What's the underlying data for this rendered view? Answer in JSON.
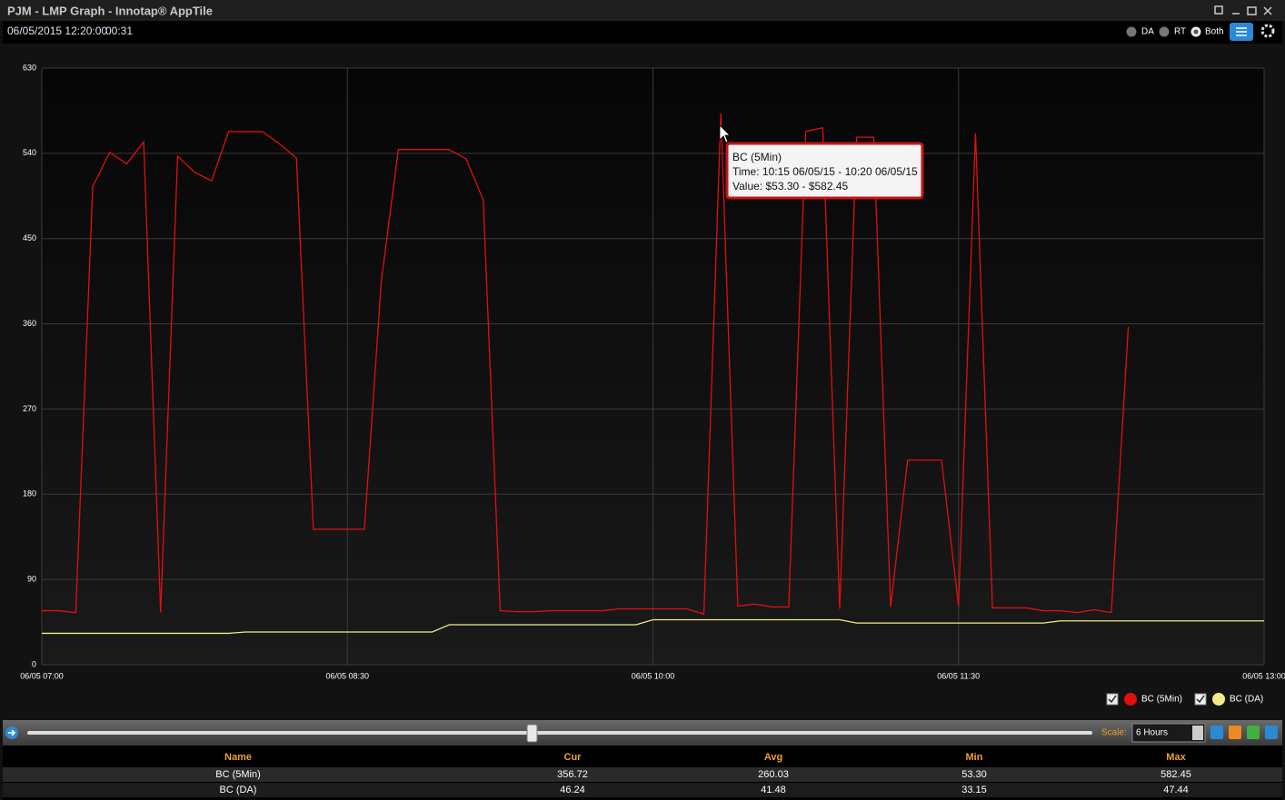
{
  "window": {
    "title": "PJM - LMP Graph - Innotap® AppTile"
  },
  "toolbar": {
    "timestamp": "06/05/2015 12:20:00",
    "elapsed": "00:31",
    "modes": [
      "DA",
      "RT",
      "Both"
    ]
  },
  "chart_data": {
    "type": "line",
    "xlim": [
      "06/05 07:00",
      "06/05 13:00"
    ],
    "xticks": [
      "06/05 07:00",
      "06/05 08:30",
      "06/05 10:00",
      "06/05 11:30",
      "06/05 13:00"
    ],
    "ylim": [
      0,
      630
    ],
    "yticks": [
      0,
      90,
      180,
      270,
      360,
      450,
      540,
      630
    ],
    "grid": true,
    "legend": "bottom-right",
    "series": [
      {
        "name": "BC (5Min)",
        "color": "#e01010",
        "x": [
          "06/05 07:00",
          "06/05 07:05",
          "06/05 07:10",
          "06/05 07:15",
          "06/05 07:20",
          "06/05 07:25",
          "06/05 07:30",
          "06/05 07:35",
          "06/05 07:40",
          "06/05 07:45",
          "06/05 07:50",
          "06/05 07:55",
          "06/05 08:00",
          "06/05 08:05",
          "06/05 08:10",
          "06/05 08:15",
          "06/05 08:20",
          "06/05 08:25",
          "06/05 08:30",
          "06/05 08:35",
          "06/05 08:40",
          "06/05 08:45",
          "06/05 08:50",
          "06/05 08:55",
          "06/05 09:00",
          "06/05 09:05",
          "06/05 09:10",
          "06/05 09:15",
          "06/05 09:20",
          "06/05 09:25",
          "06/05 09:30",
          "06/05 09:35",
          "06/05 09:40",
          "06/05 09:45",
          "06/05 09:50",
          "06/05 09:55",
          "06/05 10:00",
          "06/05 10:05",
          "06/05 10:10",
          "06/05 10:15",
          "06/05 10:20",
          "06/05 10:25",
          "06/05 10:30",
          "06/05 10:35",
          "06/05 10:40",
          "06/05 10:45",
          "06/05 10:50",
          "06/05 10:55",
          "06/05 11:00",
          "06/05 11:05",
          "06/05 11:10",
          "06/05 11:15",
          "06/05 11:20",
          "06/05 11:25",
          "06/05 11:30",
          "06/05 11:35",
          "06/05 11:40",
          "06/05 11:45",
          "06/05 11:50",
          "06/05 11:55",
          "06/05 12:00",
          "06/05 12:05",
          "06/05 12:10",
          "06/05 12:15",
          "06/05 12:20"
        ],
        "values": [
          57,
          57,
          55,
          505,
          541,
          529,
          552,
          55,
          537,
          520,
          511,
          563,
          563,
          563,
          550,
          535,
          143,
          143,
          143,
          143,
          405,
          544,
          544,
          544,
          544,
          534,
          491,
          57,
          56,
          56,
          57,
          57,
          57,
          57,
          59,
          59,
          59,
          59,
          59,
          53.3,
          582.45,
          62,
          64,
          61,
          61,
          563,
          567,
          59,
          557,
          557,
          61,
          216,
          216,
          216,
          62,
          561,
          60,
          60,
          60,
          57,
          57,
          55,
          58,
          55,
          356.72
        ]
      },
      {
        "name": "BC (DA)",
        "color": "#f2ea8a",
        "x": [
          "06/05 07:00",
          "06/05 07:55",
          "06/05 08:00",
          "06/05 08:55",
          "06/05 09:00",
          "06/05 09:55",
          "06/05 10:00",
          "06/05 10:55",
          "06/05 11:00",
          "06/05 11:55",
          "06/05 12:00",
          "06/05 13:00"
        ],
        "values": [
          33.15,
          33.15,
          34.5,
          34.5,
          42.2,
          42.2,
          47.44,
          47.44,
          44,
          44,
          46.24,
          46.24
        ]
      }
    ]
  },
  "tooltip": {
    "lines": [
      "BC (5Min)",
      "Time: 10:15 06/05/15 - 10:20 06/05/15",
      "Value: $53.30 - $582.45"
    ]
  },
  "controls": {
    "scale_label": "Scale:",
    "scale_value": "6 Hours"
  },
  "table": {
    "header": [
      "Name",
      "Cur",
      "Avg",
      "Min",
      "Max"
    ],
    "rows": [
      [
        "BC (5Min)",
        "356.72",
        "260.03",
        "53.30",
        "582.45"
      ],
      [
        "BC (DA)",
        "46.24",
        "41.48",
        "33.15",
        "47.44"
      ]
    ]
  }
}
